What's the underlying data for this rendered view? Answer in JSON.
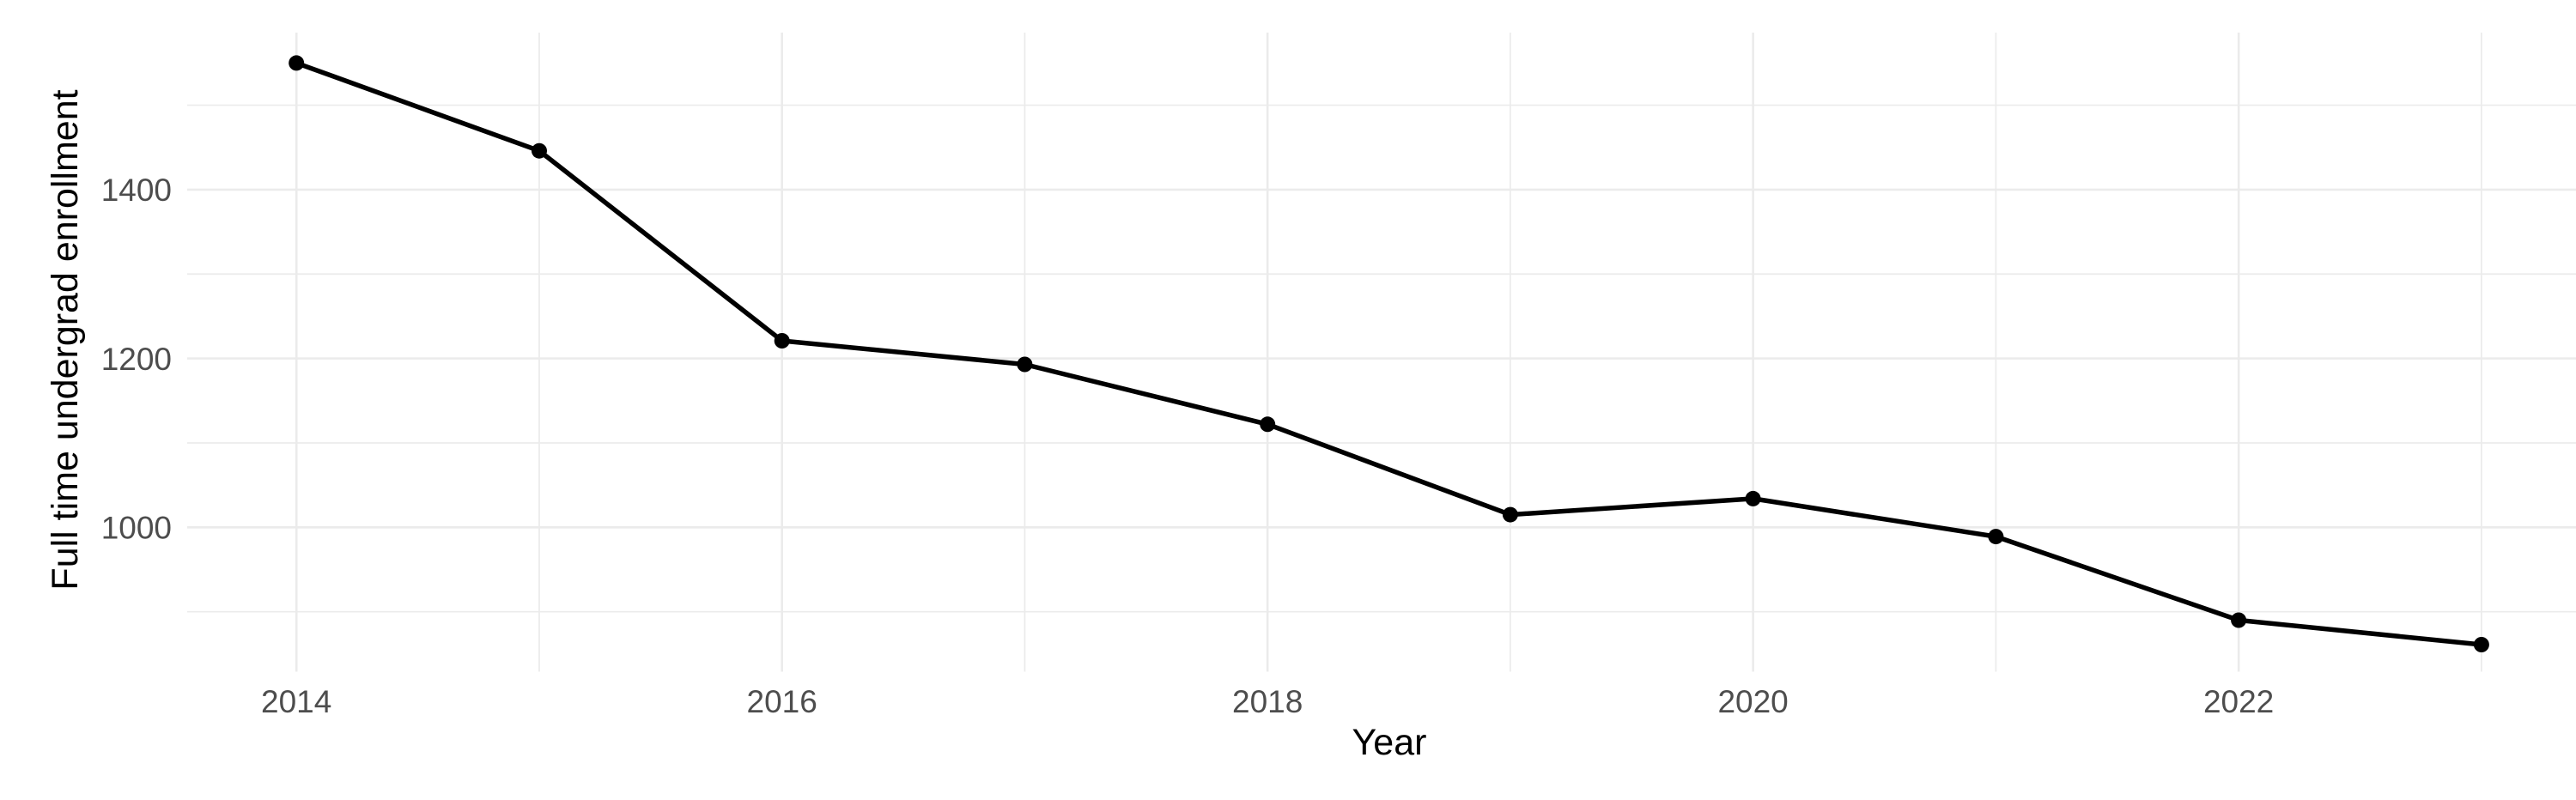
{
  "figure": {
    "description": "Line chart of full time undergraduate enrollment declining from 2014 to 2023",
    "background_color": "#ffffff"
  },
  "chart_data": {
    "type": "line",
    "title": "",
    "xlabel": "Year",
    "ylabel": "Full time undergrad enrollment",
    "x": [
      2014,
      2015,
      2016,
      2017,
      2018,
      2019,
      2020,
      2021,
      2022,
      2023
    ],
    "series": [
      {
        "name": "Full time undergrad enrollment",
        "values": [
          1550,
          1446,
          1221,
          1193,
          1122,
          1015,
          1034,
          989,
          890,
          861
        ]
      }
    ],
    "x_tick_values": [
      2014,
      2016,
      2018,
      2020,
      2022
    ],
    "x_tick_labels": [
      "2014",
      "2016",
      "2018",
      "2020",
      "2022"
    ],
    "y_tick_values": [
      1000,
      1200,
      1400
    ],
    "y_tick_labels": [
      "1000",
      "1200",
      "1400"
    ],
    "x_minor_grid_values": [
      2015,
      2017,
      2019,
      2021,
      2023
    ],
    "y_minor_grid_values": [
      900,
      1100,
      1300,
      1500
    ],
    "xlim": [
      2013.55,
      2023.455
    ],
    "ylim": [
      829,
      1586
    ],
    "grid": "major-and-minor",
    "legend": "none",
    "marker": "filled-circle",
    "colors": {
      "line": "#000000",
      "point": "#000000",
      "grid_major": "#ebebeb",
      "grid_minor": "#ebebeb",
      "tick_label": "#4d4d4d",
      "axis_title": "#000000",
      "background": "#ffffff"
    }
  }
}
